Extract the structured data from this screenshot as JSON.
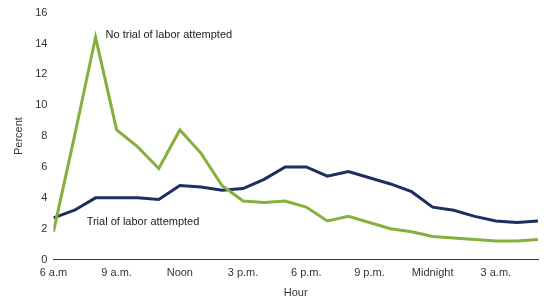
{
  "chart_data": {
    "type": "line",
    "x_label": "Hour",
    "y_label": "Percent",
    "categories": [
      "6 a.m",
      null,
      null,
      "9 a.m.",
      null,
      null,
      "Noon",
      null,
      null,
      "3 p.m.",
      null,
      null,
      "6 p.m.",
      null,
      null,
      "9 p.m.",
      null,
      null,
      "Midnight",
      null,
      null,
      "3 a.m.",
      null,
      null
    ],
    "series": [
      {
        "name": "No trial of labor attempted",
        "color": "#86b03c",
        "values": [
          1.8,
          8.0,
          14.4,
          8.4,
          7.3,
          5.9,
          8.4,
          6.9,
          4.8,
          3.8,
          3.7,
          3.8,
          3.4,
          2.5,
          2.8,
          2.4,
          2.0,
          1.8,
          1.5,
          1.4,
          1.3,
          1.2,
          1.2,
          1.3
        ]
      },
      {
        "name": "Trial of labor attempted",
        "color": "#1c2f5e",
        "values": [
          2.7,
          3.2,
          4.0,
          4.0,
          4.0,
          3.9,
          4.8,
          4.7,
          4.5,
          4.6,
          5.2,
          6.0,
          6.0,
          5.4,
          5.7,
          5.3,
          4.9,
          4.4,
          3.4,
          3.2,
          2.8,
          2.5,
          2.4,
          2.5
        ]
      }
    ],
    "ylim": [
      0,
      16
    ],
    "yticks": [
      0,
      2,
      4,
      6,
      8,
      10,
      12,
      14,
      16
    ],
    "grid": false
  }
}
